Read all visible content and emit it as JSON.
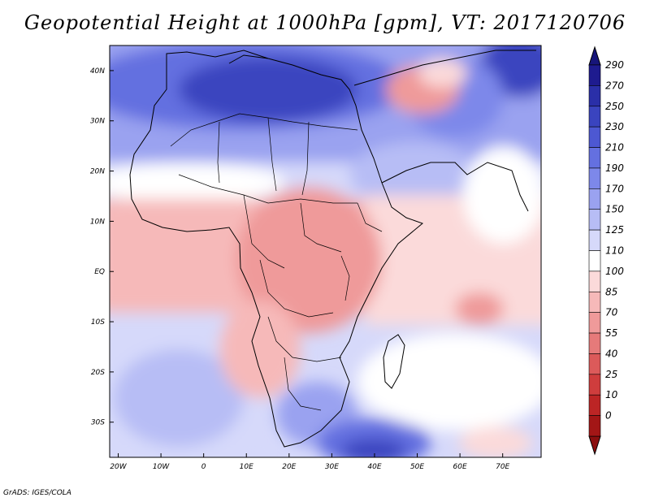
{
  "title": "Geopotential Height at 1000hPa [gpm], VT: 2017120706",
  "footer": "GrADS: IGES/COLA",
  "axes": {
    "x_ticks": [
      {
        "label": "20W",
        "lon": -20
      },
      {
        "label": "10W",
        "lon": -10
      },
      {
        "label": "0",
        "lon": 0
      },
      {
        "label": "10E",
        "lon": 10
      },
      {
        "label": "20E",
        "lon": 20
      },
      {
        "label": "30E",
        "lon": 30
      },
      {
        "label": "40E",
        "lon": 40
      },
      {
        "label": "50E",
        "lon": 50
      },
      {
        "label": "60E",
        "lon": 60
      },
      {
        "label": "70E",
        "lon": 70
      }
    ],
    "y_ticks": [
      {
        "label": "40N",
        "lat": 40
      },
      {
        "label": "30N",
        "lat": 30
      },
      {
        "label": "20N",
        "lat": 20
      },
      {
        "label": "10N",
        "lat": 10
      },
      {
        "label": "EQ",
        "lat": 0
      },
      {
        "label": "10S",
        "lat": -10
      },
      {
        "label": "20S",
        "lat": -20
      },
      {
        "label": "30S",
        "lat": -30
      }
    ],
    "lon_range": [
      -22,
      79
    ],
    "lat_range": [
      -37,
      45
    ]
  },
  "colorbar": {
    "levels": [
      {
        "label": "290",
        "color": "#1e1b8f"
      },
      {
        "label": "270",
        "color": "#2a2fa8"
      },
      {
        "label": "250",
        "color": "#3a44bf"
      },
      {
        "label": "230",
        "color": "#4d58d2"
      },
      {
        "label": "210",
        "color": "#6470e0"
      },
      {
        "label": "190",
        "color": "#7d88ea"
      },
      {
        "label": "170",
        "color": "#9aa2f0"
      },
      {
        "label": "150",
        "color": "#b7bdf5"
      },
      {
        "label": "125",
        "color": "#d6d9fa"
      },
      {
        "label": "110",
        "color": "#ffffff"
      },
      {
        "label": "100",
        "color": "#fbdada"
      },
      {
        "label": "85",
        "color": "#f6b9b9"
      },
      {
        "label": "70",
        "color": "#ef9a9a"
      },
      {
        "label": "55",
        "color": "#e67a7a"
      },
      {
        "label": "40",
        "color": "#dc5a5a"
      },
      {
        "label": "25",
        "color": "#cf3d3d"
      },
      {
        "label": "10",
        "color": "#bc2525"
      },
      {
        "label": "0",
        "color": "#a31616"
      }
    ],
    "top_arrow_color": "#17157a",
    "bottom_arrow_color": "#8b0e0e"
  }
}
